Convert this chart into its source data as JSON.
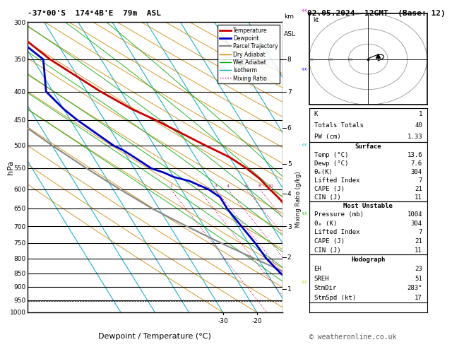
{
  "title_left": "-37°00'S  174°4B'E  79m  ASL",
  "title_right": "02.05.2024  12GMT  (Base: 12)",
  "xlabel": "Dewpoint / Temperature (°C)",
  "ylabel_left": "hPa",
  "pressure_levels": [
    300,
    350,
    400,
    450,
    500,
    550,
    600,
    650,
    700,
    750,
    800,
    850,
    900,
    950,
    1000
  ],
  "p_min": 300,
  "p_max": 1000,
  "T_min": -35,
  "T_max": 40,
  "skew_factor": 0.7,
  "temp_profile_p": [
    300,
    350,
    400,
    430,
    450,
    500,
    525,
    550,
    575,
    600,
    620,
    650,
    700,
    750,
    800,
    850,
    900,
    950,
    1000
  ],
  "temp_profile_T": [
    -42,
    -35,
    -26,
    -20,
    -15,
    -5,
    0,
    3,
    5,
    6,
    7,
    8,
    8.5,
    9,
    10,
    11,
    12,
    13,
    13.6
  ],
  "dewp_profile_p": [
    300,
    350,
    400,
    430,
    450,
    500,
    510,
    525,
    550,
    560,
    570,
    580,
    590,
    600,
    620,
    650,
    700,
    750,
    800,
    850,
    900,
    950,
    1000
  ],
  "dewp_profile_T": [
    -44,
    -37,
    -42,
    -40,
    -38,
    -32,
    -30,
    -28,
    -25,
    -22,
    -20,
    -16,
    -14,
    -12,
    -10,
    -10,
    -9,
    -8,
    -7.5,
    -6,
    -4,
    -2,
    7.6
  ],
  "parcel_p": [
    1000,
    950,
    900,
    850,
    800,
    750,
    700,
    650,
    600,
    550,
    500,
    450,
    400,
    350,
    300
  ],
  "parcel_T": [
    13.6,
    8,
    2,
    -4,
    -11,
    -18,
    -25,
    -32,
    -38,
    -44,
    -50,
    -56,
    -62,
    -68,
    -74
  ],
  "lcl_pressure": 955,
  "mixing_ratio_lines": [
    1,
    2,
    3,
    4,
    6,
    8,
    10,
    15,
    20,
    25
  ],
  "wet_adiabat_values": [
    0,
    5,
    10,
    15,
    20,
    25,
    30
  ],
  "colors": {
    "temperature": "#cc0000",
    "dewpoint": "#0000cc",
    "parcel": "#888888",
    "dry_adiabat": "#cc8800",
    "wet_adiabat": "#00aa00",
    "isotherm": "#00aacc",
    "mixing_ratio": "#cc0066",
    "background": "#ffffff",
    "grid": "#000000"
  },
  "legend_items": [
    {
      "label": "Temperature",
      "color": "#cc0000",
      "lw": 2,
      "ls": "-"
    },
    {
      "label": "Dewpoint",
      "color": "#0000cc",
      "lw": 2,
      "ls": "-"
    },
    {
      "label": "Parcel Trajectory",
      "color": "#888888",
      "lw": 1.5,
      "ls": "-"
    },
    {
      "label": "Dry Adiabat",
      "color": "#cc8800",
      "lw": 1,
      "ls": "-"
    },
    {
      "label": "Wet Adiabat",
      "color": "#00aa00",
      "lw": 1,
      "ls": "-"
    },
    {
      "label": "Isotherm",
      "color": "#00aacc",
      "lw": 1,
      "ls": "-"
    },
    {
      "label": "Mixing Ratio",
      "color": "#cc0066",
      "lw": 1,
      "ls": ":"
    }
  ],
  "info_K": "1",
  "info_TT": "40",
  "info_PW": "1.33",
  "info_surf_temp": "13.6",
  "info_surf_dewp": "7.6",
  "info_surf_theta": "304",
  "info_surf_li": "7",
  "info_surf_cape": "21",
  "info_surf_cin": "11",
  "info_mu_pres": "1004",
  "info_mu_theta": "304",
  "info_mu_li": "7",
  "info_mu_cape": "21",
  "info_mu_cin": "11",
  "info_hodo_eh": "23",
  "info_hodo_sreh": "51",
  "info_hodo_stmdir": "283°",
  "info_hodo_stmspd": "17",
  "km_pressures": {
    "1": 908,
    "2": 795,
    "3": 700,
    "4": 610,
    "5": 540,
    "6": 465,
    "7": 400,
    "8": 350
  },
  "footnote": "© weatheronline.co.uk"
}
